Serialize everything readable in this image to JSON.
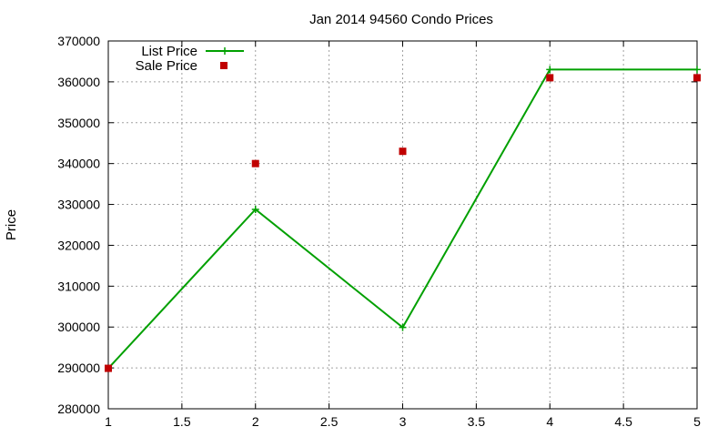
{
  "chart_data": {
    "type": "line",
    "title": "Jan 2014 94560 Condo Prices",
    "xlabel": "",
    "ylabel": "Price",
    "xlim": [
      1,
      5
    ],
    "ylim": [
      280000,
      370000
    ],
    "x_ticks": [
      "1",
      "1.5",
      "2",
      "2.5",
      "3",
      "3.5",
      "4",
      "4.5",
      "5"
    ],
    "y_ticks": [
      "280000",
      "290000",
      "300000",
      "310000",
      "320000",
      "330000",
      "340000",
      "350000",
      "360000",
      "370000"
    ],
    "grid": true,
    "legend_position": "top-left",
    "series": [
      {
        "name": "List Price",
        "style": "line-plus",
        "color": "#00a000",
        "x": [
          1,
          2,
          3,
          4,
          5
        ],
        "y": [
          289900,
          328800,
          299900,
          363000,
          363000
        ]
      },
      {
        "name": "Sale Price",
        "style": "square-marker",
        "color": "#c00000",
        "x": [
          1,
          2,
          3,
          4,
          5
        ],
        "y": [
          289900,
          340000,
          343000,
          361000,
          361000
        ]
      }
    ]
  }
}
